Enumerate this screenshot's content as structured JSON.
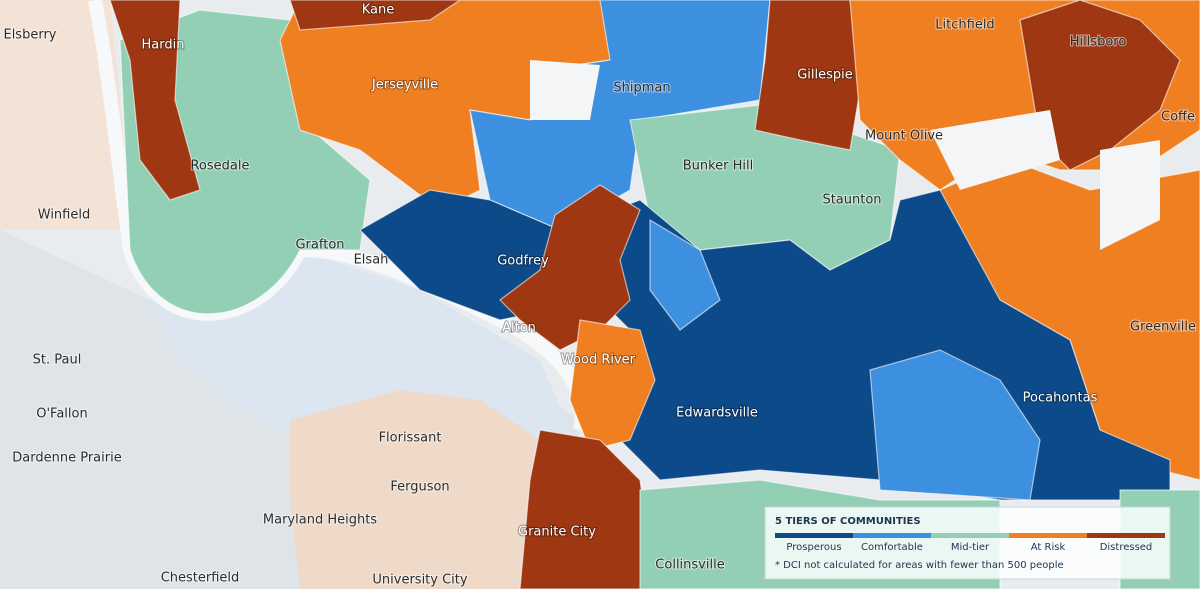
{
  "map": {
    "places": [
      "Elsberry",
      "Kane",
      "Hardin",
      "Jerseyville",
      "Shipman",
      "Litchfield",
      "Hillsboro",
      "Gillespie",
      "Coffe",
      "Mount Olive",
      "Rosedale",
      "Bunker Hill",
      "Staunton",
      "Winfield",
      "Grafton",
      "Elsah",
      "Godfrey",
      "Alton",
      "Wood River",
      "St. Paul",
      "O'Fallon",
      "Dardenne Prairie",
      "Edwardsville",
      "Pocahontas",
      "Greenville",
      "Florissant",
      "Ferguson",
      "Maryland Heights",
      "Granite City",
      "Collinsville",
      "Chesterfield",
      "University City"
    ]
  },
  "legend": {
    "title": "5 TIERS OF COMMUNITIES",
    "tiers": [
      {
        "name": "Prosperous",
        "color": "#0c4a8a"
      },
      {
        "name": "Comfortable",
        "color": "#3d8fe0"
      },
      {
        "name": "Mid-tier",
        "color": "#92cfb5"
      },
      {
        "name": "At Risk",
        "color": "#f07f22"
      },
      {
        "name": "Distressed",
        "color": "#9e3712"
      }
    ],
    "note": "* DCI not calculated for areas with fewer than 500 people"
  }
}
